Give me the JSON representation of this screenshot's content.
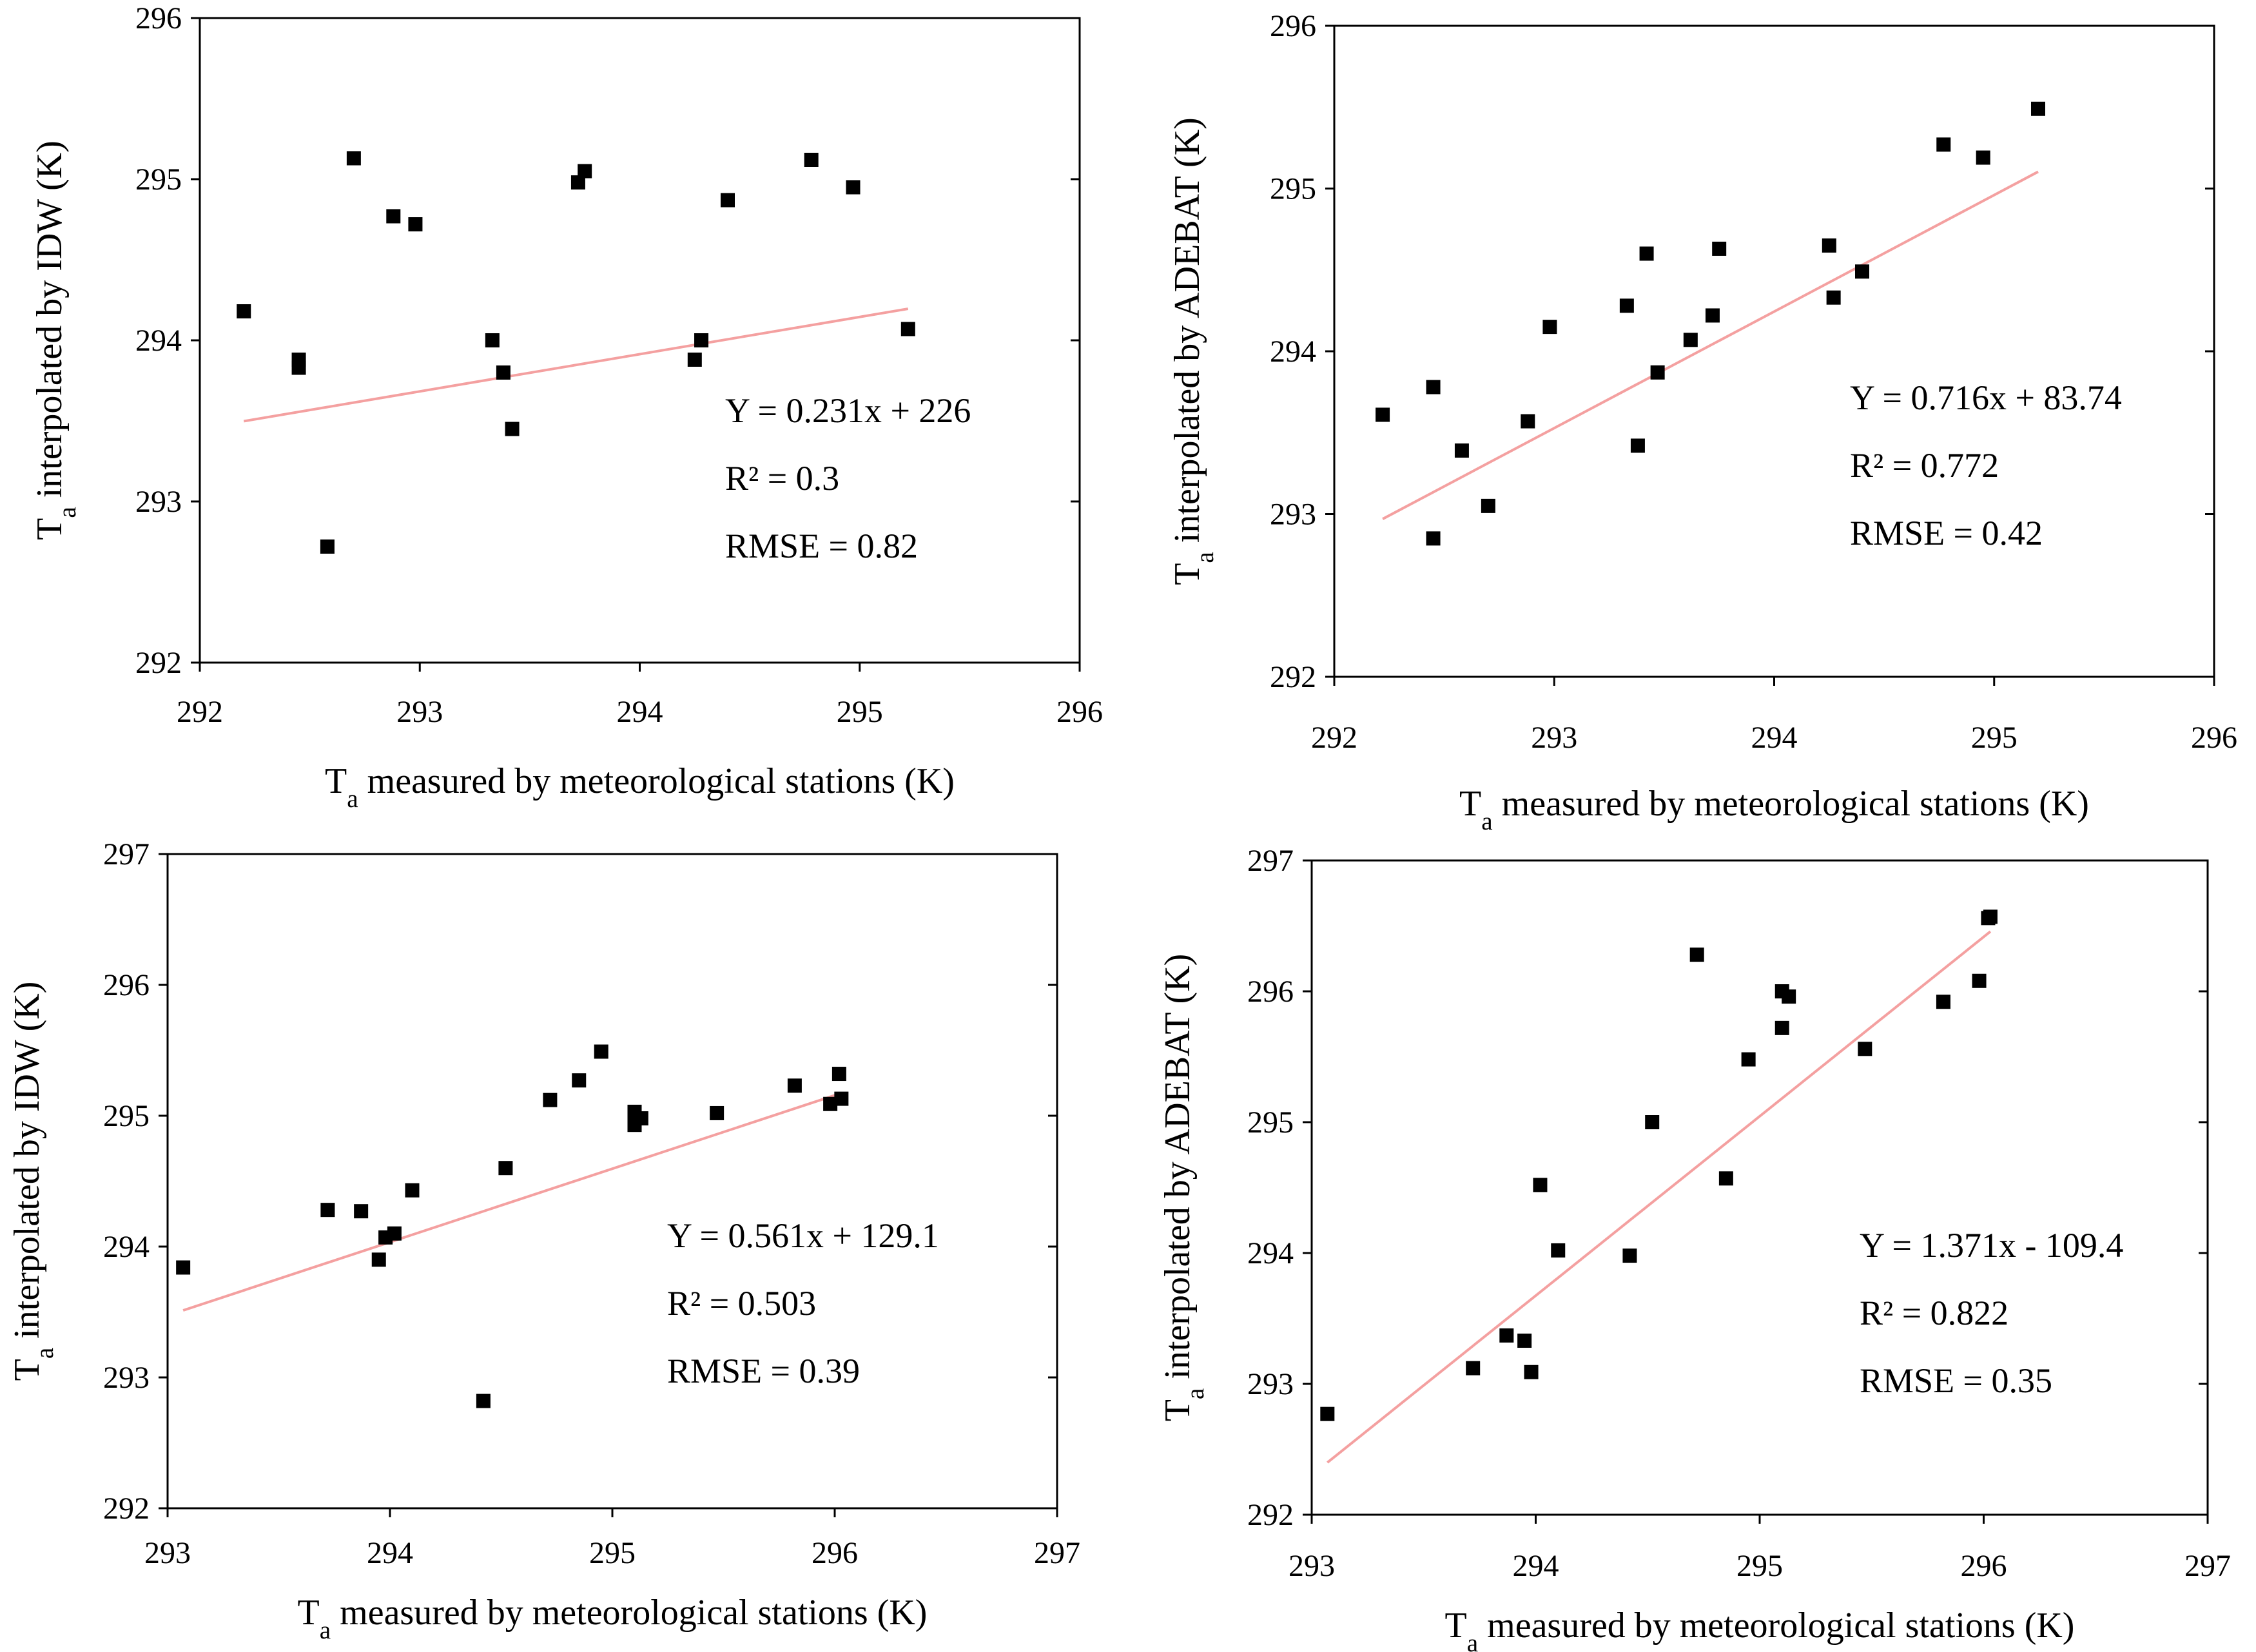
{
  "chart_data": [
    {
      "type": "scatter",
      "id": "top-left",
      "xlabel": "Ta measured by meteorological stations (K)",
      "ylabel": "Ta interpolated by IDW (K)",
      "xlim": [
        292,
        296
      ],
      "ylim": [
        292,
        296
      ],
      "xticks": [
        "292",
        "293",
        "294",
        "295",
        "296"
      ],
      "yticks": [
        "292",
        "293",
        "294",
        "295",
        "296"
      ],
      "points": [
        [
          292.2,
          294.18
        ],
        [
          292.45,
          293.88
        ],
        [
          292.45,
          293.83
        ],
        [
          292.58,
          292.72
        ],
        [
          292.7,
          295.13
        ],
        [
          292.88,
          294.77
        ],
        [
          292.98,
          294.72
        ],
        [
          293.33,
          294.0
        ],
        [
          293.38,
          293.8
        ],
        [
          293.42,
          293.45
        ],
        [
          293.72,
          294.98
        ],
        [
          293.75,
          295.05
        ],
        [
          294.25,
          293.88
        ],
        [
          294.28,
          294.0
        ],
        [
          294.4,
          294.87
        ],
        [
          294.78,
          295.12
        ],
        [
          294.97,
          294.95
        ],
        [
          295.22,
          294.07
        ]
      ],
      "trendline": {
        "slope": 0.231,
        "intercept": 226,
        "x_range": [
          292.2,
          295.22
        ]
      },
      "annotations": {
        "equation": "Y = 0.231x + 226",
        "r2": "R² = 0.3",
        "rmse": "RMSE = 0.82"
      }
    },
    {
      "type": "scatter",
      "id": "top-right",
      "xlabel": "Ta measured by meteorological stations (K)",
      "ylabel": "Ta interpolated by ADEBAT (K)",
      "xlim": [
        292,
        296
      ],
      "ylim": [
        292,
        296
      ],
      "xticks": [
        "292",
        "293",
        "294",
        "295",
        "296"
      ],
      "yticks": [
        "292",
        "293",
        "294",
        "295",
        "296"
      ],
      "points": [
        [
          292.22,
          293.61
        ],
        [
          292.45,
          293.78
        ],
        [
          292.45,
          292.85
        ],
        [
          292.58,
          293.39
        ],
        [
          292.7,
          293.05
        ],
        [
          292.88,
          293.57
        ],
        [
          292.98,
          294.15
        ],
        [
          293.33,
          294.28
        ],
        [
          293.38,
          293.42
        ],
        [
          293.42,
          294.6
        ],
        [
          293.47,
          293.87
        ],
        [
          293.62,
          294.07
        ],
        [
          293.72,
          294.22
        ],
        [
          293.75,
          294.63
        ],
        [
          294.25,
          294.65
        ],
        [
          294.27,
          294.33
        ],
        [
          294.4,
          294.49
        ],
        [
          294.77,
          295.27
        ],
        [
          294.95,
          295.19
        ],
        [
          295.2,
          295.49
        ]
      ],
      "trendline": {
        "slope": 0.716,
        "intercept": 83.74,
        "x_range": [
          292.22,
          295.2
        ]
      },
      "annotations": {
        "equation": "Y = 0.716x + 83.74",
        "r2": "R² = 0.772",
        "rmse": "RMSE = 0.42"
      }
    },
    {
      "type": "scatter",
      "id": "bottom-left",
      "xlabel": "Ta measured by meteorological stations (K)",
      "ylabel": "Ta interpolated by IDW (K)",
      "xlim": [
        293,
        297
      ],
      "ylim": [
        292,
        297
      ],
      "xticks": [
        "293",
        "294",
        "295",
        "296",
        "297"
      ],
      "yticks": [
        "292",
        "293",
        "294",
        "295",
        "296",
        "297"
      ],
      "points": [
        [
          293.07,
          293.84
        ],
        [
          293.72,
          294.28
        ],
        [
          293.87,
          294.27
        ],
        [
          293.95,
          293.9
        ],
        [
          293.98,
          294.07
        ],
        [
          294.02,
          294.1
        ],
        [
          294.1,
          294.43
        ],
        [
          294.42,
          292.82
        ],
        [
          294.52,
          294.6
        ],
        [
          294.72,
          295.12
        ],
        [
          294.85,
          295.27
        ],
        [
          294.95,
          295.49
        ],
        [
          295.1,
          295.03
        ],
        [
          295.1,
          294.93
        ],
        [
          295.13,
          294.98
        ],
        [
          295.47,
          295.02
        ],
        [
          295.82,
          295.23
        ],
        [
          295.98,
          295.09
        ],
        [
          296.02,
          295.32
        ],
        [
          296.03,
          295.13
        ]
      ],
      "trendline": {
        "slope": 0.561,
        "intercept": 129.1,
        "x_range": [
          293.07,
          296.03
        ]
      },
      "annotations": {
        "equation": "Y = 0.561x + 129.1",
        "r2": "R² = 0.503",
        "rmse": "RMSE = 0.39"
      }
    },
    {
      "type": "scatter",
      "id": "bottom-right",
      "xlabel": "Ta measured by meteorological stations (K)",
      "ylabel": "Ta interpolated by ADEBAT (K)",
      "xlim": [
        293,
        297
      ],
      "ylim": [
        292,
        297
      ],
      "xticks": [
        "293",
        "294",
        "295",
        "296",
        "297"
      ],
      "yticks": [
        "292",
        "293",
        "294",
        "295",
        "296",
        "297"
      ],
      "points": [
        [
          293.07,
          292.77
        ],
        [
          293.72,
          293.12
        ],
        [
          293.87,
          293.37
        ],
        [
          293.95,
          293.33
        ],
        [
          293.98,
          293.09
        ],
        [
          294.02,
          294.52
        ],
        [
          294.1,
          294.02
        ],
        [
          294.42,
          293.98
        ],
        [
          294.52,
          295.0
        ],
        [
          294.72,
          296.28
        ],
        [
          294.85,
          294.57
        ],
        [
          294.95,
          295.48
        ],
        [
          295.1,
          295.72
        ],
        [
          295.1,
          296.0
        ],
        [
          295.13,
          295.96
        ],
        [
          295.47,
          295.56
        ],
        [
          295.82,
          295.92
        ],
        [
          295.98,
          296.08
        ],
        [
          296.02,
          296.56
        ],
        [
          296.03,
          296.57
        ]
      ],
      "trendline": {
        "slope": 1.371,
        "intercept": -109.4,
        "x_range": [
          293.07,
          296.03
        ]
      },
      "annotations": {
        "equation": "Y = 1.371x - 109.4",
        "r2": "R² = 0.822",
        "rmse": "RMSE = 0.35"
      }
    }
  ]
}
